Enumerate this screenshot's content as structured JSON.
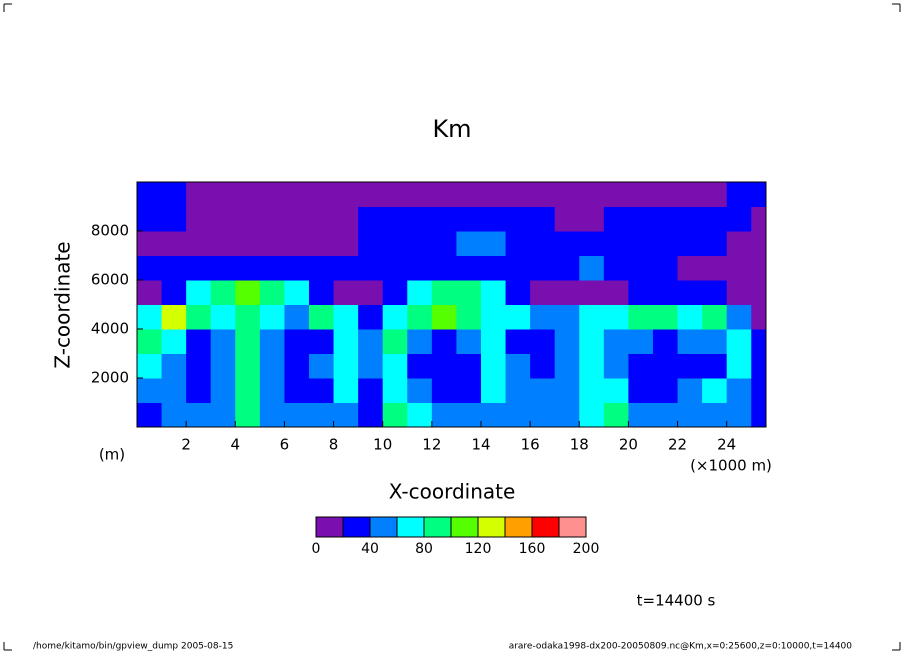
{
  "chart_data": {
    "type": "contour",
    "title": "Km",
    "x_label": "X-coordinate",
    "y_label": "Z-coordinate",
    "y_unit": "(m)",
    "x_unit": "(×1000 m)",
    "time_label": "t=14400 s",
    "footer_left": "/home/kitamo/bin/gpview_dump  2005-08-15",
    "footer_right": "arare-odaka1998-dx200-20050809.nc@Km,x=0:25600,z=0:10000,t=14400",
    "xlim": [
      0,
      25.6
    ],
    "xticks": [
      2,
      4,
      6,
      8,
      10,
      12,
      14,
      16,
      18,
      20,
      22,
      24
    ],
    "ylim": [
      0,
      10000
    ],
    "yticks": [
      2000,
      4000,
      6000,
      8000
    ],
    "levels": [
      0,
      20,
      40,
      60,
      80,
      100,
      120,
      140,
      160,
      180,
      200
    ],
    "colors": [
      "#7a0fb0",
      "#0000ff",
      "#0080ff",
      "#00ffff",
      "#00ff80",
      "#55ff00",
      "#d4ff00",
      "#ffa000",
      "#ff0000",
      "#ff9090"
    ],
    "colorbar_ticks": [
      0,
      40,
      80,
      120,
      160,
      200
    ],
    "x": [
      0.5,
      1.5,
      2.5,
      3.5,
      4.5,
      5.5,
      6.5,
      7.5,
      8.5,
      9.5,
      10.5,
      11.5,
      12.5,
      13.5,
      14.5,
      15.5,
      16.5,
      17.5,
      18.5,
      19.5,
      20.5,
      21.5,
      22.5,
      23.5,
      24.5,
      25.5
    ],
    "z": [
      500,
      1500,
      2500,
      3500,
      4500,
      5500,
      6500,
      7500,
      8500,
      9500
    ],
    "values": [
      [
        30,
        50,
        50,
        50,
        90,
        50,
        50,
        50,
        50,
        30,
        90,
        70,
        50,
        50,
        50,
        50,
        50,
        50,
        70,
        90,
        50,
        50,
        50,
        50,
        50,
        30
      ],
      [
        50,
        50,
        30,
        50,
        90,
        50,
        30,
        30,
        70,
        30,
        70,
        50,
        30,
        30,
        70,
        50,
        50,
        50,
        70,
        70,
        30,
        30,
        50,
        70,
        50,
        30
      ],
      [
        70,
        50,
        30,
        50,
        90,
        50,
        30,
        50,
        70,
        50,
        70,
        30,
        30,
        30,
        70,
        50,
        30,
        50,
        70,
        50,
        30,
        30,
        30,
        30,
        70,
        30
      ],
      [
        90,
        70,
        30,
        50,
        90,
        50,
        30,
        30,
        70,
        50,
        90,
        50,
        30,
        50,
        70,
        30,
        30,
        50,
        70,
        50,
        50,
        30,
        50,
        50,
        70,
        30
      ],
      [
        70,
        130,
        90,
        70,
        90,
        70,
        50,
        90,
        70,
        30,
        70,
        90,
        110,
        90,
        70,
        70,
        50,
        50,
        70,
        70,
        90,
        90,
        70,
        90,
        50,
        10
      ],
      [
        10,
        30,
        70,
        90,
        110,
        90,
        70,
        30,
        10,
        10,
        30,
        70,
        90,
        90,
        70,
        30,
        10,
        10,
        10,
        10,
        30,
        30,
        30,
        30,
        10,
        10
      ],
      [
        30,
        30,
        30,
        30,
        30,
        30,
        30,
        30,
        30,
        30,
        30,
        30,
        30,
        30,
        30,
        30,
        30,
        30,
        50,
        30,
        30,
        30,
        10,
        10,
        10,
        10
      ],
      [
        10,
        10,
        10,
        10,
        10,
        10,
        10,
        10,
        10,
        30,
        30,
        30,
        30,
        50,
        50,
        30,
        30,
        30,
        30,
        30,
        30,
        30,
        30,
        30,
        10,
        10
      ],
      [
        30,
        30,
        10,
        10,
        10,
        10,
        10,
        10,
        10,
        30,
        30,
        30,
        30,
        30,
        30,
        30,
        30,
        10,
        10,
        30,
        30,
        30,
        30,
        30,
        30,
        10
      ],
      [
        30,
        30,
        10,
        10,
        10,
        10,
        10,
        10,
        10,
        10,
        10,
        10,
        10,
        10,
        10,
        10,
        10,
        10,
        10,
        10,
        10,
        10,
        10,
        10,
        30,
        30
      ]
    ]
  }
}
